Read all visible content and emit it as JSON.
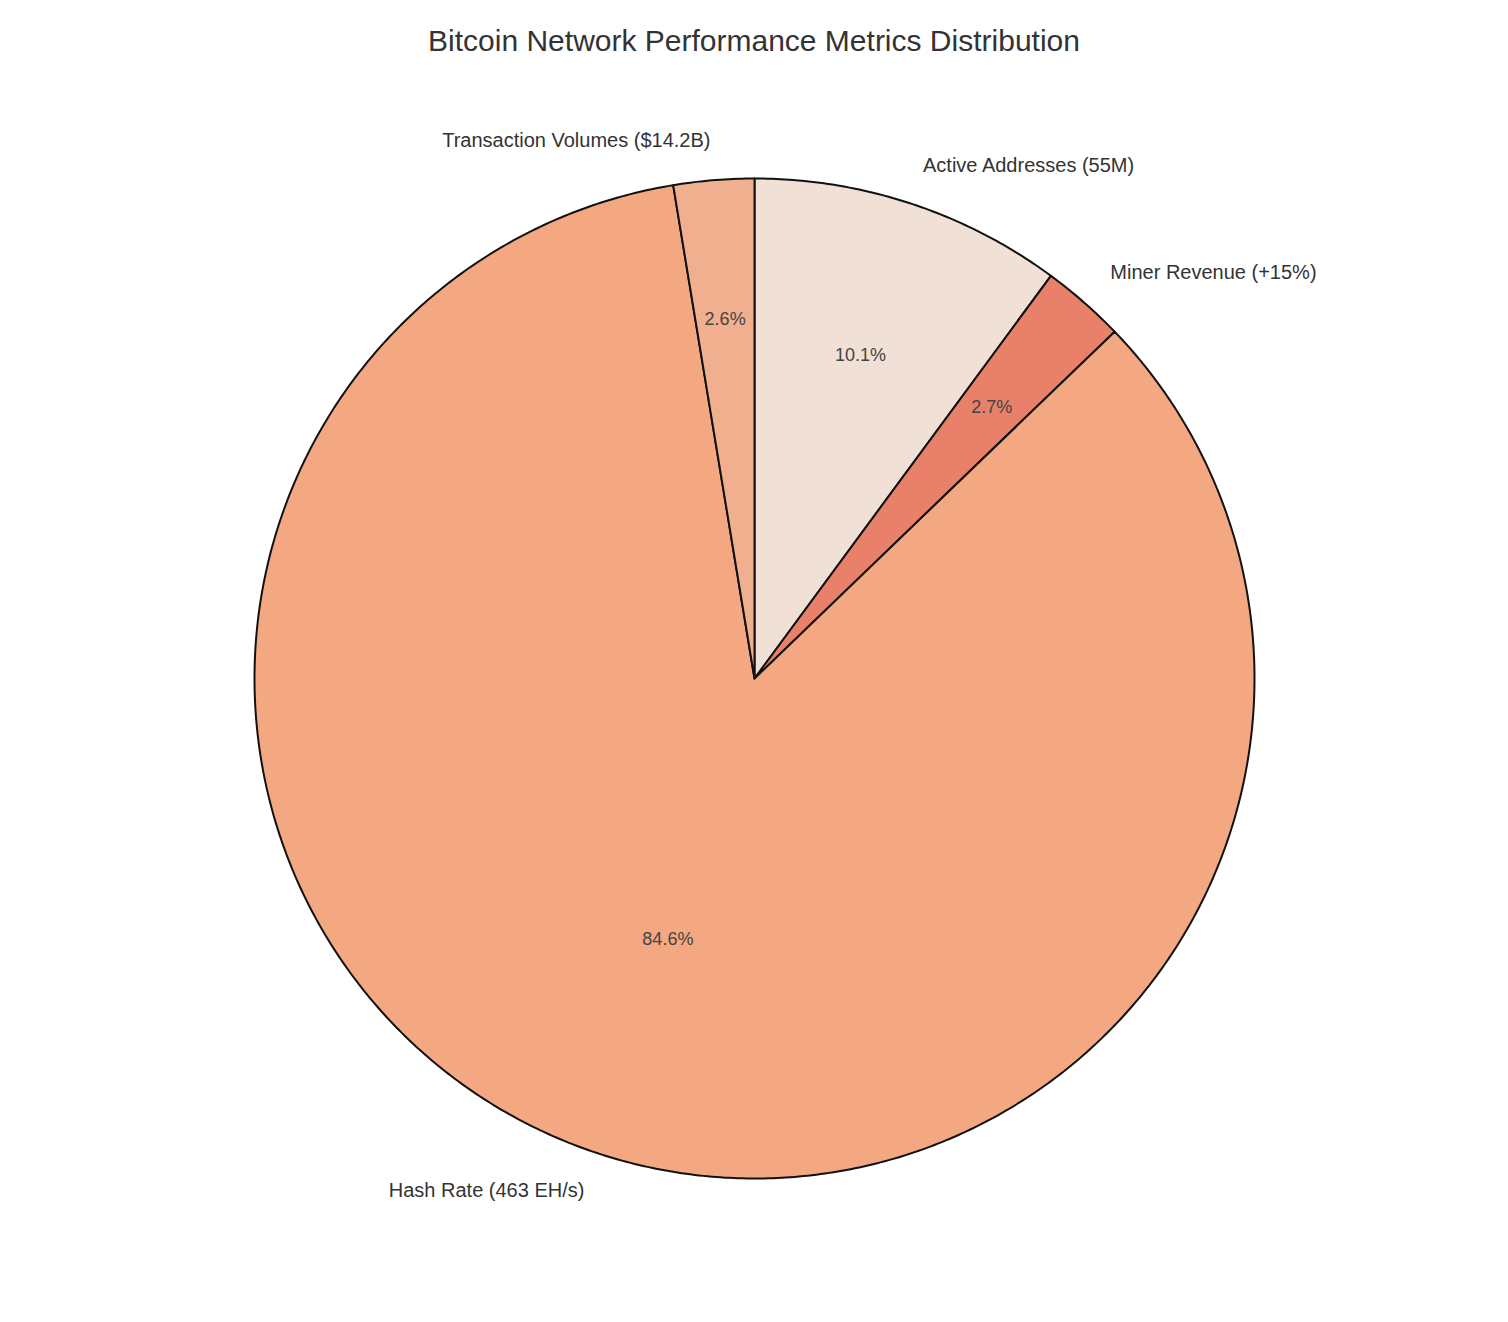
{
  "chart_data": {
    "type": "pie",
    "title": "Bitcoin Network Performance Metrics Distribution",
    "categories": [
      "Active Addresses (55M)",
      "Miner Revenue (+15%)",
      "Hash Rate (463 EH/s)",
      "Transaction Volumes ($14.2B)"
    ],
    "values": [
      10.1,
      2.7,
      84.6,
      2.6
    ],
    "value_labels": [
      "10.1%",
      "2.7%",
      "84.6%",
      "2.6%"
    ],
    "colors": [
      "#F0E0D5",
      "#E8806A",
      "#F4A882",
      "#F0B090"
    ],
    "data_labels": true
  }
}
